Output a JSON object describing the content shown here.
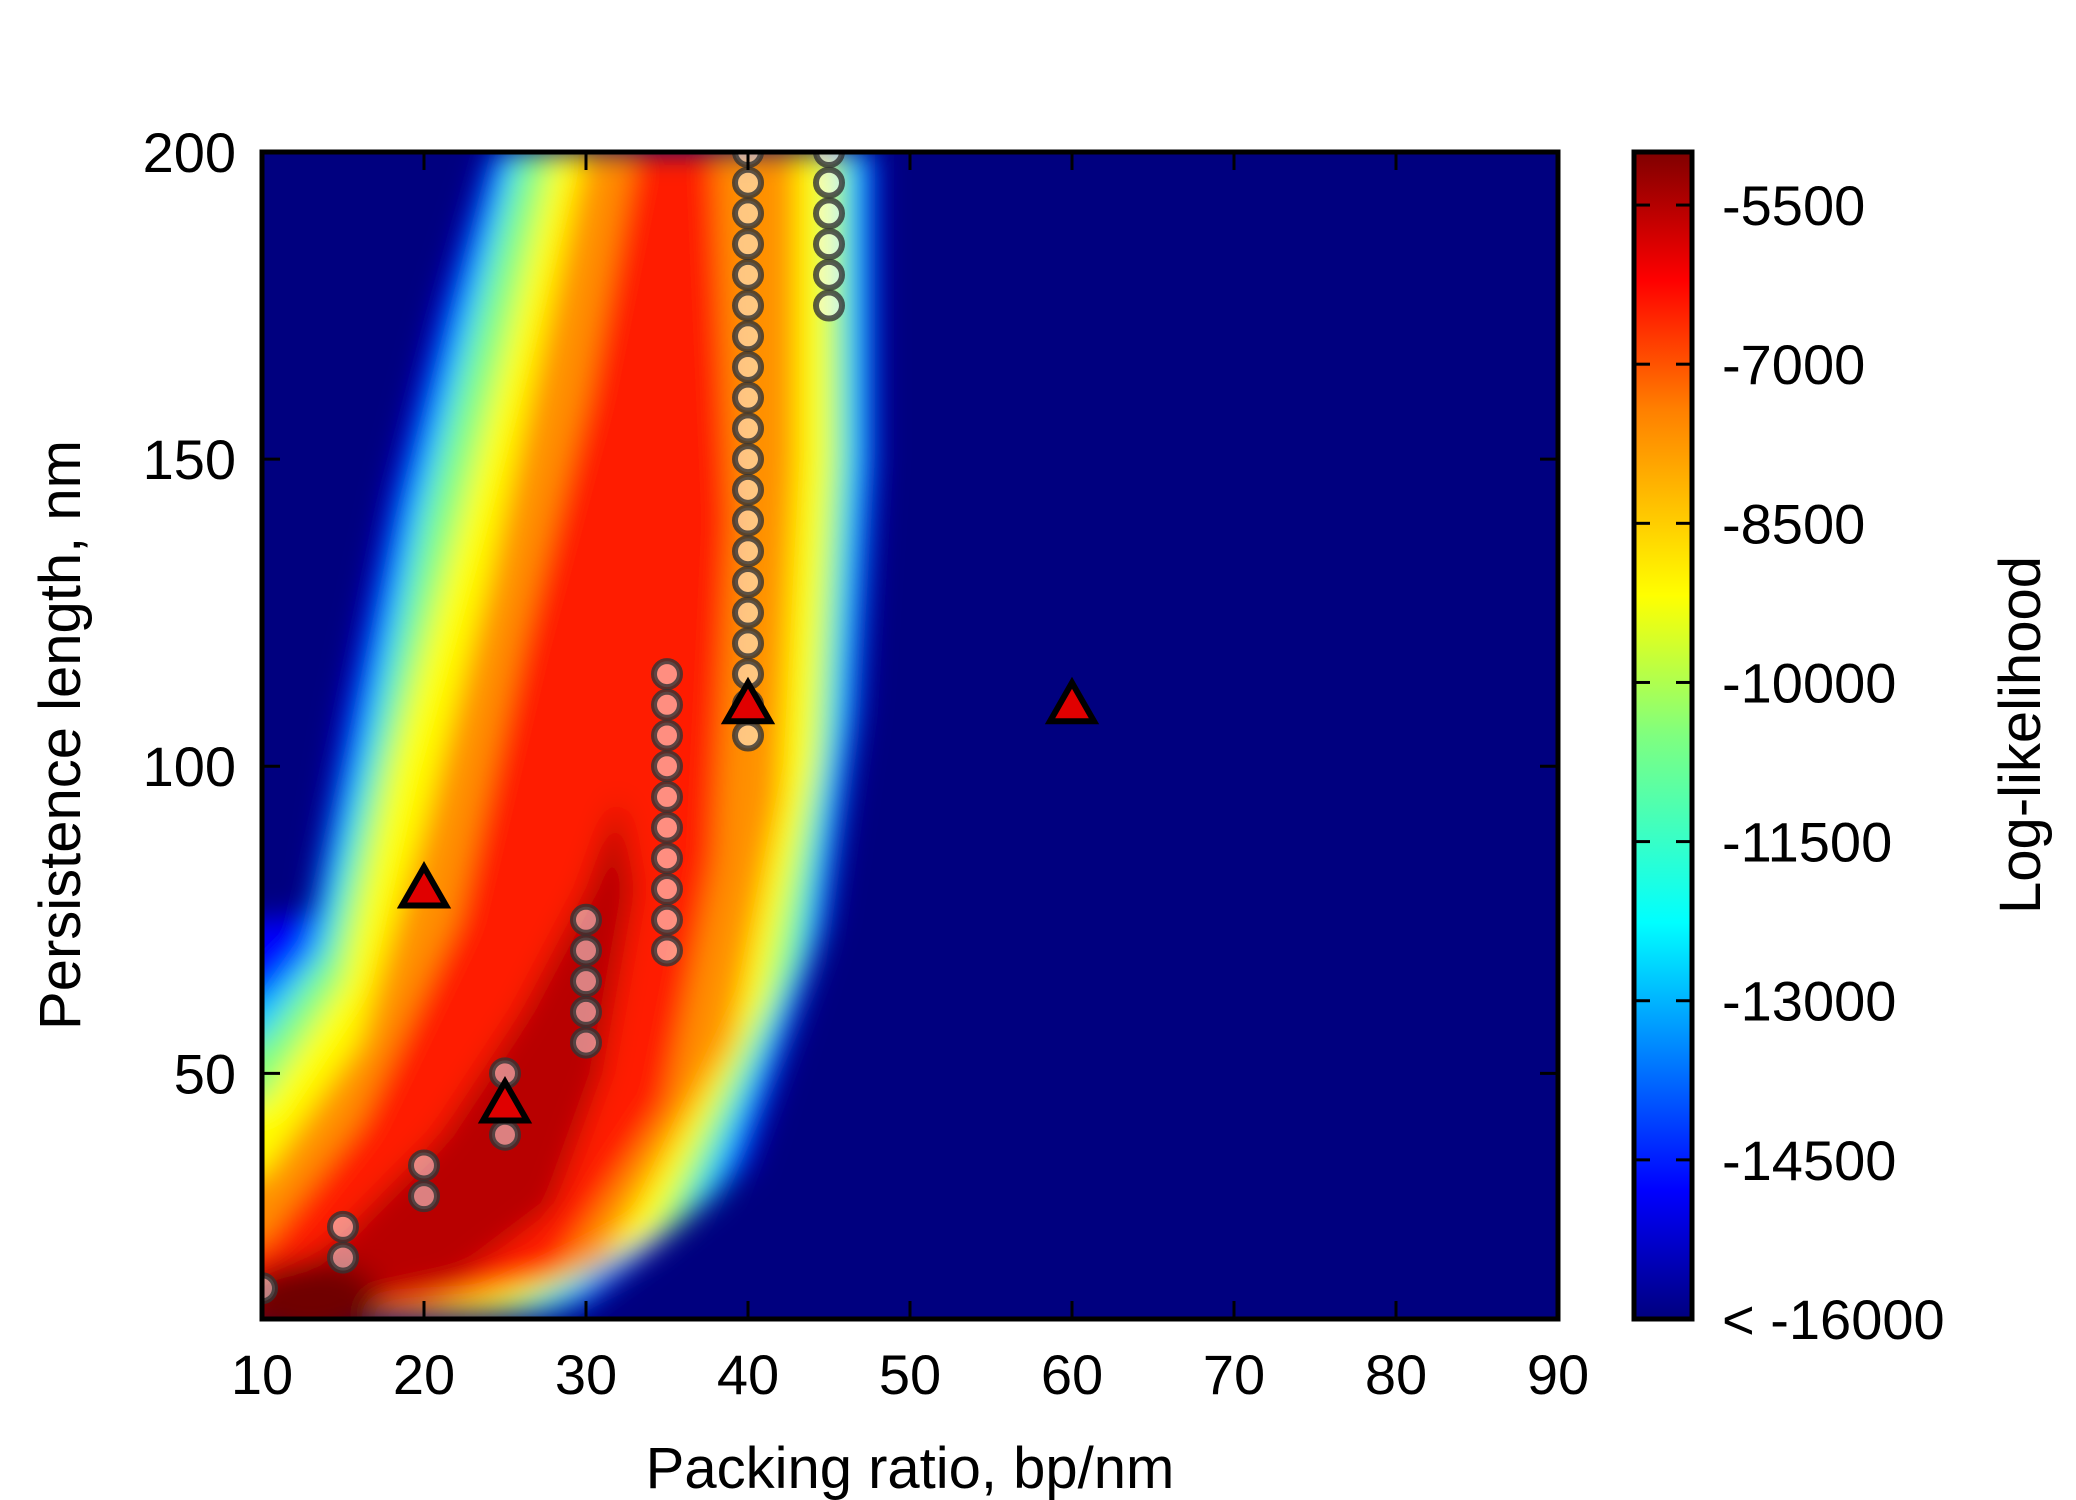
{
  "chart_data": {
    "type": "heatmap",
    "xlabel": "Packing ratio, bp/nm",
    "ylabel": "Persistence length, nm",
    "xlim": [
      10,
      90
    ],
    "ylim": [
      10,
      200
    ],
    "x_ticks": [
      "10",
      "20",
      "30",
      "40",
      "50",
      "60",
      "70",
      "80",
      "90"
    ],
    "y_ticks": [
      "50",
      "100",
      "150",
      "200"
    ],
    "colorbar": {
      "label": "Log-likelihood",
      "range": [
        -16000,
        -5000
      ],
      "ticks": [
        "-5500",
        "-7000",
        "-8500",
        "-10000",
        "-11500",
        "-13000",
        "-14500",
        "< -16000"
      ],
      "tick_values": [
        -5500,
        -7000,
        -8500,
        -10000,
        -11500,
        -13000,
        -14500,
        -16000
      ],
      "colormap": "jet"
    },
    "grid": false,
    "circle_markers": [
      {
        "x": 10,
        "y": 15
      },
      {
        "x": 15,
        "y": 20
      },
      {
        "x": 15,
        "y": 25
      },
      {
        "x": 20,
        "y": 30
      },
      {
        "x": 20,
        "y": 35
      },
      {
        "x": 25,
        "y": 40
      },
      {
        "x": 25,
        "y": 50
      },
      {
        "x": 30,
        "y": 55
      },
      {
        "x": 30,
        "y": 60
      },
      {
        "x": 30,
        "y": 65
      },
      {
        "x": 30,
        "y": 70
      },
      {
        "x": 30,
        "y": 75
      },
      {
        "x": 35,
        "y": 70
      },
      {
        "x": 35,
        "y": 75
      },
      {
        "x": 35,
        "y": 80
      },
      {
        "x": 35,
        "y": 85
      },
      {
        "x": 35,
        "y": 90
      },
      {
        "x": 35,
        "y": 95
      },
      {
        "x": 35,
        "y": 100
      },
      {
        "x": 35,
        "y": 105
      },
      {
        "x": 35,
        "y": 110
      },
      {
        "x": 35,
        "y": 115
      },
      {
        "x": 40,
        "y": 105
      },
      {
        "x": 40,
        "y": 110
      },
      {
        "x": 40,
        "y": 115
      },
      {
        "x": 40,
        "y": 120
      },
      {
        "x": 40,
        "y": 125
      },
      {
        "x": 40,
        "y": 130
      },
      {
        "x": 40,
        "y": 135
      },
      {
        "x": 40,
        "y": 140
      },
      {
        "x": 40,
        "y": 145
      },
      {
        "x": 40,
        "y": 150
      },
      {
        "x": 40,
        "y": 155
      },
      {
        "x": 40,
        "y": 160
      },
      {
        "x": 40,
        "y": 165
      },
      {
        "x": 40,
        "y": 170
      },
      {
        "x": 40,
        "y": 175
      },
      {
        "x": 40,
        "y": 180
      },
      {
        "x": 40,
        "y": 185
      },
      {
        "x": 40,
        "y": 190
      },
      {
        "x": 40,
        "y": 195
      },
      {
        "x": 40,
        "y": 200
      },
      {
        "x": 45,
        "y": 175
      },
      {
        "x": 45,
        "y": 180
      },
      {
        "x": 45,
        "y": 185
      },
      {
        "x": 45,
        "y": 190
      },
      {
        "x": 45,
        "y": 195
      },
      {
        "x": 45,
        "y": 200
      }
    ],
    "triangle_markers": [
      {
        "x": 20,
        "y": 80
      },
      {
        "x": 25,
        "y": 45
      },
      {
        "x": 40,
        "y": 110
      },
      {
        "x": 60,
        "y": 110
      }
    ],
    "marker_colors": {
      "triangle_fill": "#e00000",
      "triangle_edge": "#000000",
      "circle_edge": "#333333",
      "background": "#00007f"
    }
  }
}
